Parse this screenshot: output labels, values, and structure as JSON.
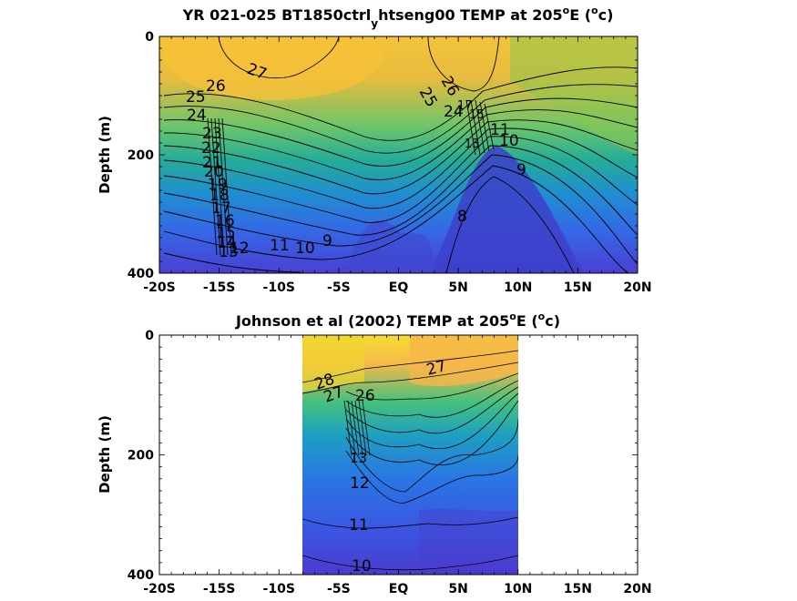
{
  "panels": [
    {
      "title_main": "YR 021-025 BT1850ctrl",
      "title_sub": "y",
      "title_rest": "htseng00 TEMP at 205",
      "title_sup": "o",
      "title_tail": "E (",
      "title_unit_sup": "o",
      "title_end": "c)"
    },
    {
      "title_main": "Johnson et al (2002) TEMP at 205",
      "title_sup": "o",
      "title_tail": "E (",
      "title_unit_sup": "o",
      "title_end": "c)"
    }
  ],
  "chart_data": [
    {
      "type": "heatmap",
      "subtype": "filled-contour",
      "title": "YR 021-025 BT1850ctrl_yhtseng00 TEMP at 205°E (°c)",
      "ylabel": "Depth (m)",
      "xlabel": "",
      "x_ticks": [
        "-20S",
        "-15S",
        "-10S",
        "-5S",
        "EQ",
        "5N",
        "10N",
        "15N",
        "20N"
      ],
      "y_ticks": [
        "0",
        "200",
        "400"
      ],
      "xlim": [
        -20,
        20
      ],
      "ylim": [
        0,
        400
      ],
      "y_reversed": true,
      "colormap": "parula",
      "contour_labels": [
        "27",
        "26",
        "25",
        "24",
        "23",
        "22",
        "21",
        "20",
        "19",
        "18",
        "17",
        "16",
        "15",
        "14",
        "13",
        "12",
        "11",
        "10",
        "9",
        "8",
        "26",
        "25",
        "24",
        "11",
        "10",
        "9"
      ],
      "contour_levels": [
        8,
        9,
        10,
        11,
        12,
        13,
        14,
        15,
        16,
        17,
        18,
        19,
        20,
        21,
        22,
        23,
        24,
        25,
        26,
        27
      ]
    },
    {
      "type": "heatmap",
      "subtype": "filled-contour",
      "title": "Johnson et al (2002) TEMP at 205°E (°c)",
      "ylabel": "Depth (m)",
      "xlabel": "",
      "x_ticks": [
        "-20S",
        "-15S",
        "-10S",
        "-5S",
        "EQ",
        "5N",
        "10N",
        "15N",
        "20N"
      ],
      "y_ticks": [
        "0",
        "200",
        "400"
      ],
      "xlim": [
        -20,
        20
      ],
      "ylim": [
        0,
        400
      ],
      "y_reversed": true,
      "data_xrange": [
        -8,
        10
      ],
      "colormap": "parula",
      "contour_labels": [
        "28",
        "27",
        "27",
        "26",
        "13",
        "12",
        "11",
        "10"
      ],
      "contour_levels": [
        10,
        11,
        12,
        13,
        14,
        15,
        16,
        17,
        18,
        19,
        20,
        21,
        22,
        23,
        24,
        25,
        26,
        27,
        28
      ]
    }
  ]
}
